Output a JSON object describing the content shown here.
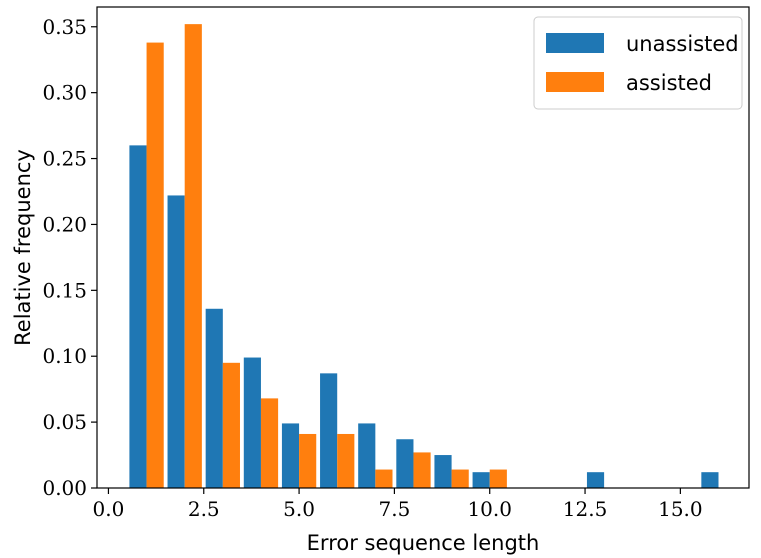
{
  "chart_data": {
    "type": "bar",
    "title": "",
    "xlabel": "Error sequence length",
    "ylabel": "Relative frequency",
    "xlim": [
      -0.3,
      16.8
    ],
    "ylim": [
      0,
      0.365
    ],
    "xticks": [
      0.0,
      2.5,
      5.0,
      7.5,
      10.0,
      12.5,
      15.0
    ],
    "xtick_labels": [
      "0.0",
      "2.5",
      "5.0",
      "7.5",
      "10.0",
      "12.5",
      "15.0"
    ],
    "yticks": [
      0.0,
      0.05,
      0.1,
      0.15,
      0.2,
      0.25,
      0.3,
      0.35
    ],
    "ytick_labels": [
      "0.00",
      "0.05",
      "0.10",
      "0.15",
      "0.20",
      "0.25",
      "0.30",
      "0.35"
    ],
    "grid": false,
    "legend_position": "top-right",
    "categories": [
      1,
      2,
      3,
      4,
      5,
      6,
      7,
      8,
      9,
      10,
      13,
      16
    ],
    "series": [
      {
        "name": "unassisted",
        "color": "#1f77b4",
        "values": [
          0.26,
          0.222,
          0.136,
          0.099,
          0.049,
          0.087,
          0.049,
          0.037,
          0.025,
          0.012,
          0.012,
          0.012
        ]
      },
      {
        "name": "assisted",
        "color": "#ff7f0e",
        "values": [
          0.338,
          0.352,
          0.095,
          0.068,
          0.041,
          0.041,
          0.014,
          0.027,
          0.014,
          0.014,
          0.0,
          0.0
        ]
      }
    ]
  }
}
